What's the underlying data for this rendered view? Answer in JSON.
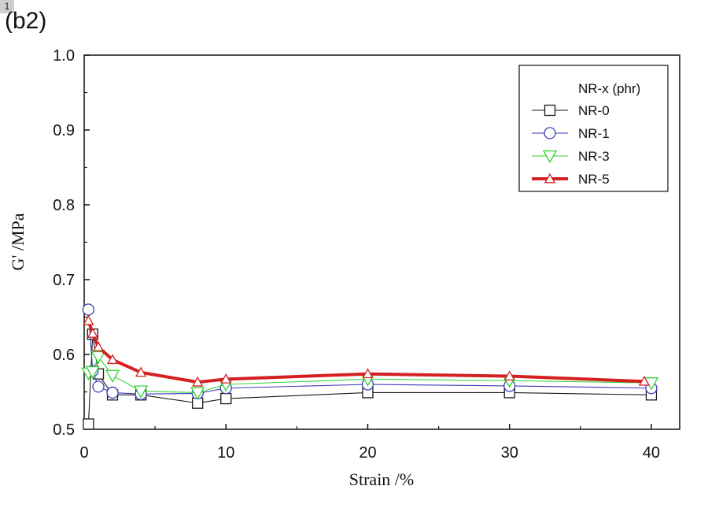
{
  "page_badge": "1",
  "panel_label": "(b2)",
  "chart_data": {
    "type": "line",
    "xlabel": "Strain /%",
    "ylabel": "G' /MPa",
    "xlim": [
      0,
      42
    ],
    "ylim": [
      0.5,
      1.0
    ],
    "x_ticks": [
      "0",
      "10",
      "20",
      "30",
      "40"
    ],
    "y_ticks": [
      "0.5",
      "0.6",
      "0.7",
      "0.8",
      "0.9",
      "1.0"
    ],
    "grid": false,
    "legend_title": "NR-x (phr)",
    "legend_position": "top-right",
    "series": [
      {
        "name": "NR-0",
        "marker": "square",
        "color": "#1a1a1a",
        "x": [
          0.3,
          0.6,
          1.0,
          2.0,
          4.0,
          8.0,
          10.0,
          20.0,
          30.0,
          40.0
        ],
        "y": [
          0.507,
          0.627,
          0.574,
          0.546,
          0.546,
          0.535,
          0.541,
          0.549,
          0.549,
          0.546
        ]
      },
      {
        "name": "NR-1",
        "marker": "circle",
        "color": "#3a3ab8",
        "x": [
          0.3,
          0.6,
          1.0,
          2.0,
          4.0,
          8.0,
          10.0,
          20.0,
          30.0,
          40.0
        ],
        "y": [
          0.66,
          0.578,
          0.557,
          0.549,
          0.547,
          0.548,
          0.555,
          0.56,
          0.558,
          0.555
        ]
      },
      {
        "name": "NR-3",
        "marker": "triangle-down",
        "color": "#33d633",
        "x": [
          0.3,
          0.6,
          1.0,
          2.0,
          4.0,
          8.0,
          10.0,
          20.0,
          30.0,
          40.0
        ],
        "y": [
          0.575,
          0.577,
          0.597,
          0.572,
          0.551,
          0.549,
          0.56,
          0.567,
          0.565,
          0.562
        ]
      },
      {
        "name": "NR-5",
        "marker": "triangle-up",
        "color": "#d42020",
        "x": [
          0.3,
          0.6,
          1.0,
          2.0,
          4.0,
          8.0,
          10.0,
          20.0,
          30.0,
          39.5
        ],
        "y": [
          0.645,
          0.628,
          0.61,
          0.593,
          0.576,
          0.563,
          0.567,
          0.574,
          0.571,
          0.564
        ]
      }
    ]
  }
}
